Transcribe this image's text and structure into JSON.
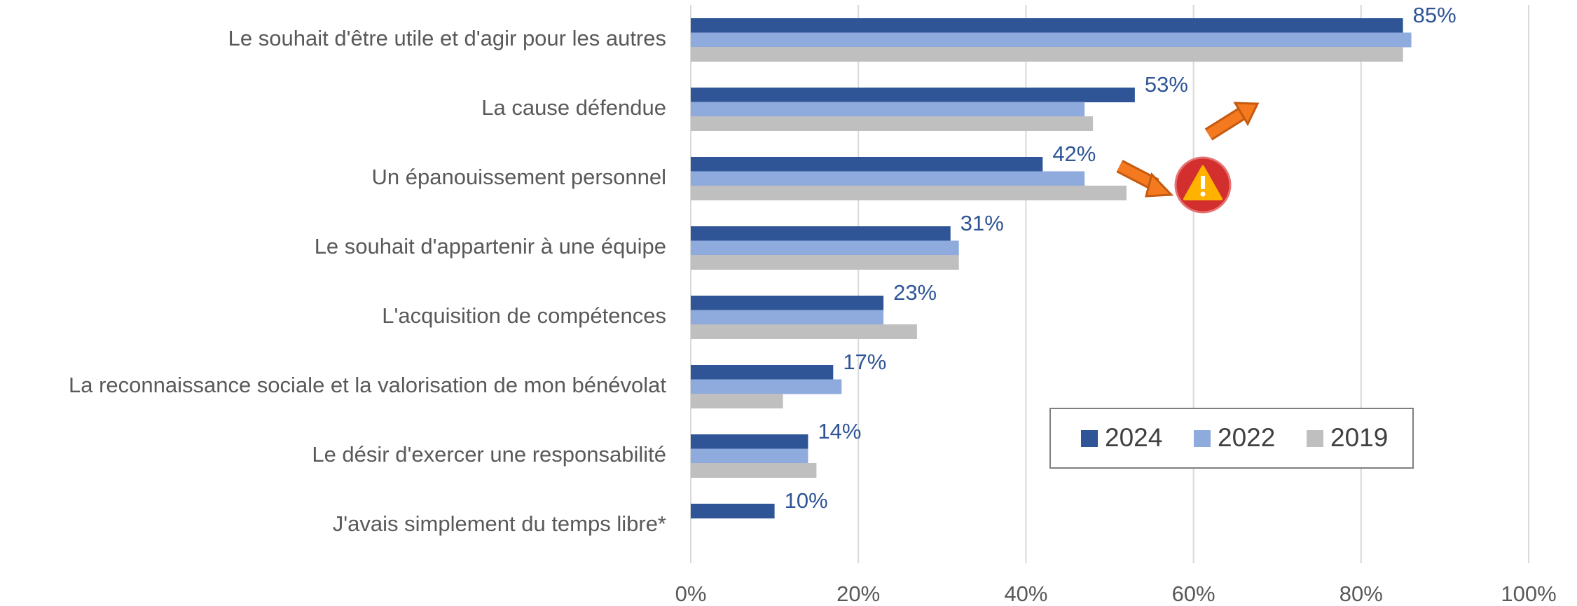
{
  "chart_data": {
    "type": "bar",
    "orientation": "horizontal",
    "categories": [
      "Le souhait d'être utile et d'agir pour les autres",
      "La cause défendue",
      "Un épanouissement personnel",
      "Le souhait d'appartenir à une équipe",
      "L'acquisition de compétences",
      "La reconnaissance sociale et la valorisation de mon bénévolat",
      "Le désir d'exercer une responsabilité",
      "J'avais simplement du temps libre*"
    ],
    "series": [
      {
        "name": "2024",
        "color": "#2f5597",
        "values": [
          85,
          53,
          42,
          31,
          23,
          17,
          14,
          10
        ],
        "value_labels": [
          "85%",
          "53%",
          "42%",
          "31%",
          "23%",
          "17%",
          "14%",
          "10%"
        ]
      },
      {
        "name": "2022",
        "color": "#8faadc",
        "values": [
          86,
          47,
          47,
          32,
          23,
          18,
          14,
          null
        ]
      },
      {
        "name": "2019",
        "color": "#bfbfbf",
        "values": [
          85,
          48,
          52,
          32,
          27,
          11,
          15,
          null
        ]
      }
    ],
    "xlim": [
      0,
      100
    ],
    "xticks": [
      {
        "value": 0,
        "label": "0%"
      },
      {
        "value": 20,
        "label": "20%"
      },
      {
        "value": 40,
        "label": "40%"
      },
      {
        "value": 60,
        "label": "60%"
      },
      {
        "value": 80,
        "label": "80%"
      },
      {
        "value": 100,
        "label": "100%"
      }
    ],
    "grid": true,
    "legend": "lower right"
  }
}
